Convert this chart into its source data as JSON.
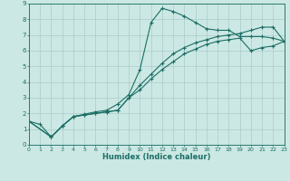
{
  "xlabel": "Humidex (Indice chaleur)",
  "bg_color": "#cce8e4",
  "grid_color": "#aaccca",
  "line_color": "#1a6e64",
  "spine_color": "#2a7a70",
  "xlim": [
    0,
    23
  ],
  "ylim": [
    0,
    9
  ],
  "xticks": [
    0,
    1,
    2,
    3,
    4,
    5,
    6,
    7,
    8,
    9,
    10,
    11,
    12,
    13,
    14,
    15,
    16,
    17,
    18,
    19,
    20,
    21,
    22,
    23
  ],
  "yticks": [
    0,
    1,
    2,
    3,
    4,
    5,
    6,
    7,
    8,
    9
  ],
  "line1_x": [
    0,
    1,
    2,
    3,
    4,
    5,
    6,
    7,
    8,
    9,
    10,
    11,
    12,
    13,
    14,
    15,
    16,
    17,
    18,
    19,
    20,
    21,
    22,
    23
  ],
  "line1_y": [
    1.5,
    1.3,
    0.5,
    1.2,
    1.8,
    1.95,
    2.1,
    2.2,
    2.6,
    3.2,
    4.8,
    7.8,
    8.7,
    8.5,
    8.2,
    7.8,
    7.4,
    7.3,
    7.3,
    6.9,
    6.9,
    6.9,
    6.8,
    6.6
  ],
  "line2_x": [
    0,
    2,
    3,
    4,
    5,
    6,
    7,
    8,
    9,
    10,
    11,
    12,
    13,
    14,
    15,
    16,
    17,
    18,
    19,
    20,
    21,
    22,
    23
  ],
  "line2_y": [
    1.5,
    0.5,
    1.2,
    1.8,
    1.9,
    2.0,
    2.1,
    2.2,
    3.0,
    3.8,
    4.5,
    5.2,
    5.8,
    6.2,
    6.5,
    6.7,
    6.9,
    7.0,
    7.1,
    7.3,
    7.5,
    7.5,
    6.6
  ],
  "line3_x": [
    0,
    2,
    3,
    4,
    5,
    6,
    7,
    8,
    9,
    10,
    11,
    12,
    13,
    14,
    15,
    16,
    17,
    18,
    19,
    20,
    21,
    22,
    23
  ],
  "line3_y": [
    1.5,
    0.5,
    1.2,
    1.8,
    1.9,
    2.0,
    2.1,
    2.2,
    3.0,
    3.5,
    4.2,
    4.8,
    5.3,
    5.8,
    6.1,
    6.4,
    6.6,
    6.7,
    6.8,
    6.0,
    6.2,
    6.3,
    6.6
  ]
}
